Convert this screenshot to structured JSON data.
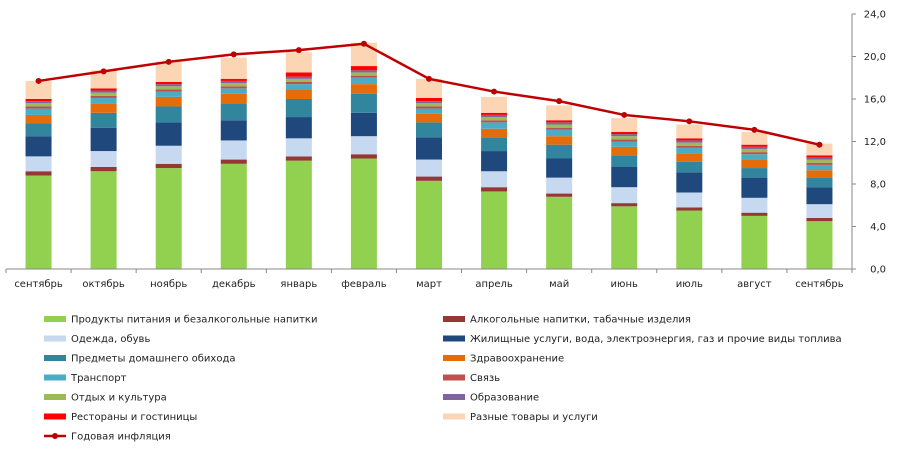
{
  "chart_data": {
    "type": "bar",
    "stacked": true,
    "categories": [
      "сентябрь",
      "октябрь",
      "ноябрь",
      "декабрь",
      "январь",
      "февраль",
      "март",
      "апрель",
      "май",
      "июнь",
      "июль",
      "август",
      "сентябрь"
    ],
    "y_ticks": [
      "0,0",
      "4,0",
      "8,0",
      "12,0",
      "16,0",
      "20,0",
      "24,0"
    ],
    "ylim": [
      0,
      24
    ],
    "y_axis_side": "right",
    "grid": false,
    "legend_position": "bottom",
    "series": [
      {
        "name": "Продукты питания и безалкогольные напитки",
        "color": "#92D050",
        "type": "bar",
        "values": [
          8.8,
          9.2,
          9.5,
          9.9,
          10.2,
          10.4,
          8.3,
          7.3,
          6.8,
          5.9,
          5.5,
          5.0,
          4.5
        ]
      },
      {
        "name": "Алкогольные напитки, табачные изделия",
        "color": "#953735",
        "type": "bar",
        "values": [
          0.4,
          0.4,
          0.4,
          0.4,
          0.4,
          0.4,
          0.4,
          0.4,
          0.3,
          0.3,
          0.3,
          0.3,
          0.3
        ]
      },
      {
        "name": "Одежда, обувь",
        "color": "#C6D9F1",
        "type": "bar",
        "values": [
          1.4,
          1.5,
          1.7,
          1.8,
          1.7,
          1.7,
          1.6,
          1.5,
          1.5,
          1.5,
          1.4,
          1.4,
          1.3
        ]
      },
      {
        "name": "Жилищные услуги, вода, электроэнергия, газ и прочие виды топлива",
        "color": "#1F497D",
        "type": "bar",
        "values": [
          1.9,
          2.2,
          2.2,
          1.9,
          2.0,
          2.2,
          2.1,
          1.9,
          1.8,
          1.9,
          1.9,
          1.9,
          1.6
        ]
      },
      {
        "name": "Предметы домашнего обихода",
        "color": "#31859C",
        "type": "bar",
        "values": [
          1.2,
          1.4,
          1.5,
          1.6,
          1.7,
          1.8,
          1.4,
          1.3,
          1.3,
          1.1,
          1.0,
          0.9,
          0.9
        ]
      },
      {
        "name": "Здравоохранение",
        "color": "#E46C0A",
        "type": "bar",
        "values": [
          0.8,
          0.9,
          0.9,
          0.9,
          0.9,
          0.9,
          0.8,
          0.8,
          0.8,
          0.8,
          0.8,
          0.8,
          0.7
        ]
      },
      {
        "name": "Транспорт",
        "color": "#4BACC6",
        "type": "bar",
        "values": [
          0.6,
          0.5,
          0.5,
          0.5,
          0.5,
          0.6,
          0.5,
          0.6,
          0.6,
          0.5,
          0.5,
          0.5,
          0.5
        ]
      },
      {
        "name": "Связь",
        "color": "#C0504D",
        "type": "bar",
        "values": [
          0.2,
          0.2,
          0.2,
          0.2,
          0.2,
          0.2,
          0.2,
          0.2,
          0.2,
          0.2,
          0.2,
          0.2,
          0.2
        ]
      },
      {
        "name": "Отдых и культура",
        "color": "#9BBB59",
        "type": "bar",
        "values": [
          0.3,
          0.3,
          0.3,
          0.3,
          0.3,
          0.3,
          0.3,
          0.3,
          0.3,
          0.3,
          0.3,
          0.3,
          0.3
        ]
      },
      {
        "name": "Образование",
        "color": "#8064A2",
        "type": "bar",
        "values": [
          0.2,
          0.2,
          0.2,
          0.2,
          0.2,
          0.2,
          0.2,
          0.2,
          0.2,
          0.2,
          0.2,
          0.2,
          0.2
        ]
      },
      {
        "name": "Рестораны и гостиницы",
        "color": "#FF0000",
        "type": "bar",
        "values": [
          0.2,
          0.2,
          0.2,
          0.2,
          0.4,
          0.4,
          0.3,
          0.2,
          0.2,
          0.2,
          0.2,
          0.2,
          0.2
        ]
      },
      {
        "name": "Разные товары и услуги",
        "color": "#FCD5B4",
        "type": "bar",
        "values": [
          1.7,
          1.7,
          1.9,
          2.0,
          1.9,
          2.2,
          1.8,
          1.5,
          1.4,
          1.3,
          1.3,
          1.2,
          1.1
        ]
      },
      {
        "name": "Годовая инфляция",
        "color": "#C00000",
        "type": "line",
        "values": [
          17.7,
          18.6,
          19.5,
          20.2,
          20.6,
          21.2,
          17.9,
          16.7,
          15.8,
          14.5,
          13.9,
          13.1,
          11.7
        ]
      }
    ]
  }
}
